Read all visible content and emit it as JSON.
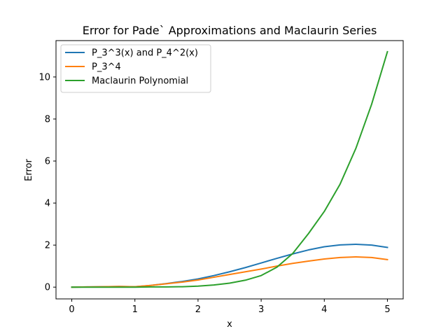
{
  "chart_data": {
    "type": "line",
    "title": "Error for Pade` Approximations and Maclaurin Series",
    "xlabel": "x",
    "ylabel": "Error",
    "xlim": [
      -0.25,
      5.25
    ],
    "ylim": [
      -0.56,
      11.73
    ],
    "xticks": [
      0,
      1,
      2,
      3,
      4,
      5
    ],
    "yticks": [
      0,
      2,
      4,
      6,
      8,
      10
    ],
    "grid": false,
    "legend_position": "top-left",
    "x": [
      0,
      0.25,
      0.5,
      0.75,
      1.0,
      1.25,
      1.5,
      1.75,
      2.0,
      2.25,
      2.5,
      2.75,
      3.0,
      3.25,
      3.5,
      3.75,
      4.0,
      4.25,
      4.5,
      4.75,
      5.0
    ],
    "series": [
      {
        "name": "P_3^3(x) and P_4^2(x)",
        "color": "#1f77b4",
        "values": [
          0,
          0.01,
          0.02,
          0.03,
          0.02,
          0.08,
          0.17,
          0.27,
          0.39,
          0.55,
          0.73,
          0.93,
          1.15,
          1.37,
          1.58,
          1.77,
          1.92,
          2.01,
          2.04,
          2.0,
          1.89
        ]
      },
      {
        "name": "P_3^4",
        "color": "#ff7f0e",
        "values": [
          0,
          0.01,
          0.02,
          0.03,
          0.02,
          0.08,
          0.16,
          0.24,
          0.34,
          0.47,
          0.6,
          0.73,
          0.86,
          1.0,
          1.13,
          1.24,
          1.34,
          1.41,
          1.44,
          1.41,
          1.31
        ]
      },
      {
        "name": "Maclaurin Polynomial",
        "color": "#2ca02c",
        "values": [
          0,
          0,
          0,
          0,
          0,
          0.01,
          0.01,
          0.02,
          0.05,
          0.1,
          0.19,
          0.33,
          0.55,
          0.95,
          1.6,
          2.55,
          3.6,
          4.9,
          6.6,
          8.7,
          11.2
        ]
      }
    ]
  }
}
